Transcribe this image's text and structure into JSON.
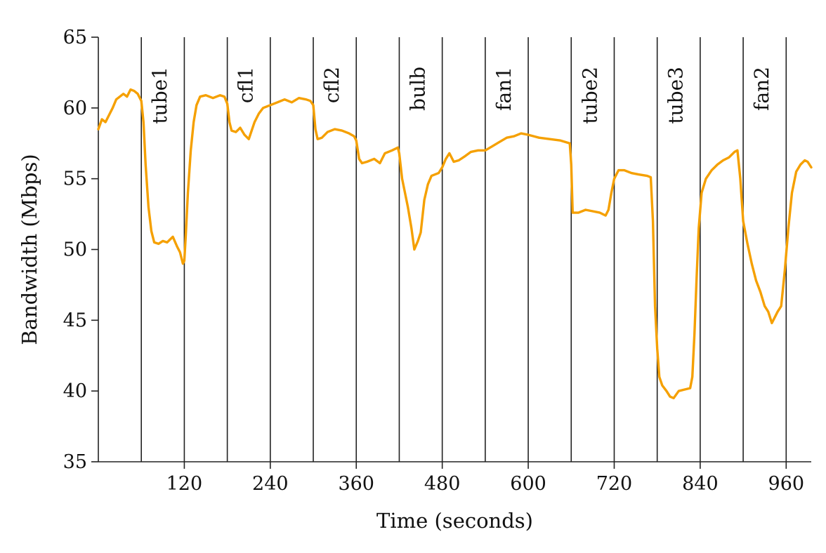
{
  "chart_data": {
    "type": "line",
    "title": "",
    "xlabel": "Time (seconds)",
    "ylabel": "Bandwidth (Mbps)",
    "xlim": [
      0,
      995
    ],
    "ylim": [
      35,
      65
    ],
    "x_ticks": [
      120,
      240,
      360,
      480,
      600,
      720,
      840,
      960
    ],
    "y_ticks": [
      35,
      40,
      45,
      50,
      55,
      60,
      65
    ],
    "grid": false,
    "legend": "none",
    "line_color": "#f5a000",
    "event_markers": [
      {
        "x": 60,
        "label": "tube1"
      },
      {
        "x": 120,
        "label": ""
      },
      {
        "x": 180,
        "label": "cfl1"
      },
      {
        "x": 240,
        "label": ""
      },
      {
        "x": 300,
        "label": "cfl2"
      },
      {
        "x": 360,
        "label": ""
      },
      {
        "x": 420,
        "label": "bulb"
      },
      {
        "x": 480,
        "label": ""
      },
      {
        "x": 540,
        "label": "fan1"
      },
      {
        "x": 600,
        "label": ""
      },
      {
        "x": 660,
        "label": "tube2"
      },
      {
        "x": 720,
        "label": ""
      },
      {
        "x": 780,
        "label": "tube3"
      },
      {
        "x": 840,
        "label": ""
      },
      {
        "x": 900,
        "label": "fan2"
      },
      {
        "x": 960,
        "label": ""
      }
    ],
    "series": [
      {
        "values": [
          [
            0,
            58.5
          ],
          [
            5,
            59.2
          ],
          [
            10,
            59.0
          ],
          [
            15,
            59.5
          ],
          [
            20,
            60.0
          ],
          [
            25,
            60.6
          ],
          [
            30,
            60.8
          ],
          [
            35,
            61.0
          ],
          [
            40,
            60.8
          ],
          [
            45,
            61.3
          ],
          [
            50,
            61.2
          ],
          [
            55,
            61.0
          ],
          [
            60,
            60.5
          ],
          [
            63,
            59.0
          ],
          [
            66,
            56.0
          ],
          [
            70,
            53.0
          ],
          [
            74,
            51.3
          ],
          [
            78,
            50.5
          ],
          [
            84,
            50.4
          ],
          [
            90,
            50.6
          ],
          [
            96,
            50.5
          ],
          [
            104,
            50.9
          ],
          [
            110,
            50.2
          ],
          [
            114,
            49.8
          ],
          [
            118,
            49.0
          ],
          [
            120,
            49.2
          ],
          [
            122,
            51.0
          ],
          [
            125,
            54.0
          ],
          [
            129,
            57.0
          ],
          [
            133,
            59.0
          ],
          [
            137,
            60.2
          ],
          [
            142,
            60.8
          ],
          [
            150,
            60.9
          ],
          [
            160,
            60.7
          ],
          [
            170,
            60.9
          ],
          [
            176,
            60.8
          ],
          [
            180,
            60.3
          ],
          [
            183,
            59.0
          ],
          [
            186,
            58.4
          ],
          [
            192,
            58.3
          ],
          [
            198,
            58.6
          ],
          [
            204,
            58.1
          ],
          [
            210,
            57.8
          ],
          [
            214,
            58.4
          ],
          [
            218,
            59.0
          ],
          [
            224,
            59.6
          ],
          [
            230,
            60.0
          ],
          [
            240,
            60.2
          ],
          [
            250,
            60.4
          ],
          [
            260,
            60.6
          ],
          [
            270,
            60.4
          ],
          [
            280,
            60.7
          ],
          [
            290,
            60.6
          ],
          [
            296,
            60.5
          ],
          [
            300,
            60.2
          ],
          [
            303,
            58.5
          ],
          [
            306,
            57.8
          ],
          [
            312,
            57.9
          ],
          [
            320,
            58.3
          ],
          [
            330,
            58.5
          ],
          [
            340,
            58.4
          ],
          [
            350,
            58.2
          ],
          [
            357,
            58.0
          ],
          [
            360,
            57.7
          ],
          [
            364,
            56.4
          ],
          [
            368,
            56.1
          ],
          [
            375,
            56.2
          ],
          [
            385,
            56.4
          ],
          [
            393,
            56.1
          ],
          [
            400,
            56.8
          ],
          [
            410,
            57.0
          ],
          [
            418,
            57.2
          ],
          [
            420,
            56.8
          ],
          [
            424,
            55.0
          ],
          [
            428,
            54.0
          ],
          [
            432,
            53.0
          ],
          [
            437,
            51.5
          ],
          [
            441,
            50.0
          ],
          [
            446,
            50.6
          ],
          [
            450,
            51.2
          ],
          [
            455,
            53.5
          ],
          [
            460,
            54.6
          ],
          [
            465,
            55.2
          ],
          [
            475,
            55.4
          ],
          [
            480,
            55.8
          ],
          [
            485,
            56.4
          ],
          [
            490,
            56.8
          ],
          [
            496,
            56.2
          ],
          [
            503,
            56.3
          ],
          [
            512,
            56.6
          ],
          [
            520,
            56.9
          ],
          [
            530,
            57.0
          ],
          [
            540,
            57.0
          ],
          [
            550,
            57.3
          ],
          [
            560,
            57.6
          ],
          [
            570,
            57.9
          ],
          [
            580,
            58.0
          ],
          [
            590,
            58.2
          ],
          [
            600,
            58.1
          ],
          [
            615,
            57.9
          ],
          [
            630,
            57.8
          ],
          [
            645,
            57.7
          ],
          [
            658,
            57.5
          ],
          [
            660,
            56.0
          ],
          [
            662,
            52.6
          ],
          [
            670,
            52.6
          ],
          [
            680,
            52.8
          ],
          [
            690,
            52.7
          ],
          [
            700,
            52.6
          ],
          [
            708,
            52.4
          ],
          [
            712,
            52.8
          ],
          [
            716,
            54.0
          ],
          [
            720,
            55.0
          ],
          [
            726,
            55.6
          ],
          [
            734,
            55.6
          ],
          [
            744,
            55.4
          ],
          [
            754,
            55.3
          ],
          [
            766,
            55.2
          ],
          [
            771,
            55.1
          ],
          [
            774,
            52.0
          ],
          [
            777,
            46.0
          ],
          [
            780,
            43.0
          ],
          [
            783,
            41.0
          ],
          [
            787,
            40.4
          ],
          [
            793,
            40.0
          ],
          [
            798,
            39.6
          ],
          [
            803,
            39.5
          ],
          [
            810,
            40.0
          ],
          [
            818,
            40.1
          ],
          [
            826,
            40.2
          ],
          [
            829,
            41.0
          ],
          [
            832,
            44.0
          ],
          [
            835,
            48.0
          ],
          [
            838,
            51.5
          ],
          [
            842,
            54.0
          ],
          [
            848,
            55.0
          ],
          [
            856,
            55.6
          ],
          [
            864,
            56.0
          ],
          [
            872,
            56.3
          ],
          [
            880,
            56.5
          ],
          [
            888,
            56.9
          ],
          [
            892,
            57.0
          ],
          [
            896,
            55.0
          ],
          [
            900,
            52.0
          ],
          [
            906,
            50.4
          ],
          [
            912,
            49.0
          ],
          [
            918,
            47.8
          ],
          [
            924,
            47.0
          ],
          [
            930,
            46.0
          ],
          [
            935,
            45.6
          ],
          [
            940,
            44.8
          ],
          [
            944,
            45.2
          ],
          [
            948,
            45.6
          ],
          [
            953,
            46.0
          ],
          [
            958,
            48.5
          ],
          [
            963,
            51.5
          ],
          [
            968,
            54.0
          ],
          [
            974,
            55.5
          ],
          [
            980,
            56.0
          ],
          [
            986,
            56.3
          ],
          [
            990,
            56.2
          ],
          [
            995,
            55.8
          ]
        ]
      }
    ]
  }
}
